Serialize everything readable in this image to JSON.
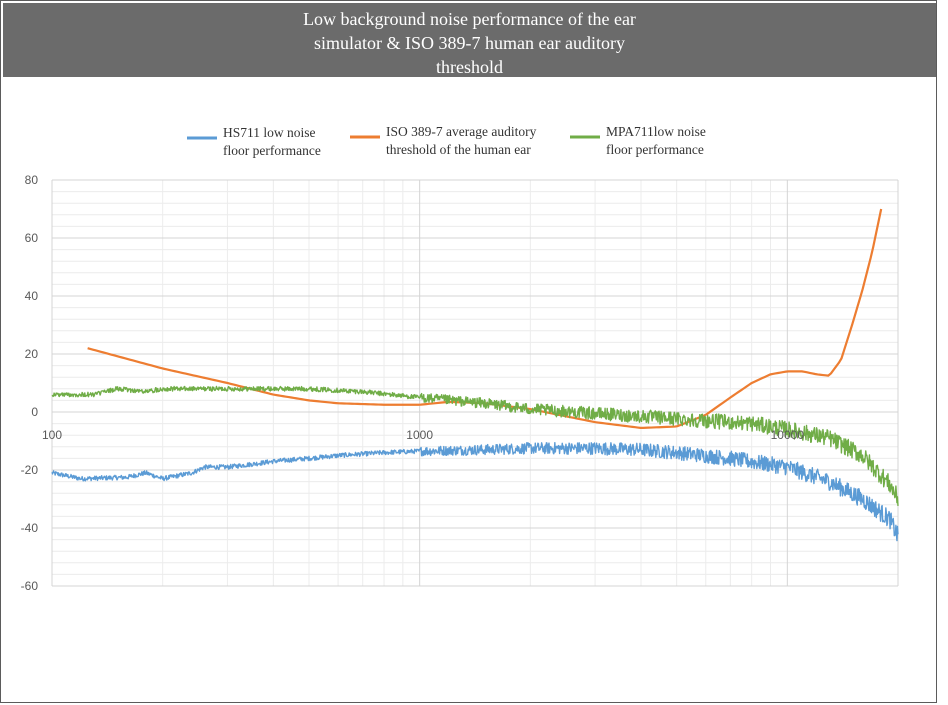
{
  "title_lines": [
    "Low background noise performance of the ear",
    "simulator & ISO 389-7 human ear auditory",
    "threshold"
  ],
  "chart_data": {
    "type": "line",
    "title": "Low background noise performance of the ear simulator & ISO 389-7 human ear auditory threshold",
    "xscale": "log",
    "xlim": [
      100,
      20000
    ],
    "ylim": [
      -60,
      80
    ],
    "x_ticks": [
      100,
      1000,
      10000
    ],
    "x_tick_labels": [
      "100",
      "1000",
      "10000"
    ],
    "y_ticks": [
      80,
      60,
      40,
      20,
      0,
      -20,
      -40,
      -60
    ],
    "y_tick_labels": [
      "80",
      "60",
      "40",
      "20",
      "0",
      "-20",
      "-40",
      "-60"
    ],
    "grid": true,
    "minor_grid": true,
    "legend_position": "top",
    "series": [
      {
        "name": "HS711 low noise floor performance",
        "legend_lines": [
          "HS711 low noise",
          "floor performance"
        ],
        "color": "#5b9bd5",
        "noisy": true,
        "x": [
          100,
          120,
          160,
          180,
          200,
          240,
          260,
          300,
          350,
          400,
          500,
          600,
          800,
          1000,
          1500,
          2000,
          3000,
          4000,
          5000,
          7000,
          10000,
          13000,
          16000,
          19000,
          20000
        ],
        "y": [
          -21,
          -23,
          -22.5,
          -21,
          -23,
          -21,
          -19,
          -19,
          -18,
          -17,
          -16,
          -15,
          -14,
          -13.5,
          -13,
          -12.5,
          -12.5,
          -13,
          -14,
          -16,
          -19,
          -24,
          -30,
          -37,
          -43
        ]
      },
      {
        "name": "ISO 389-7 average auditory threshold of the human ear",
        "legend_lines": [
          "ISO 389-7 average auditory",
          "threshold of the human ear"
        ],
        "color": "#ed7d31",
        "noisy": false,
        "x": [
          125,
          200,
          300,
          400,
          500,
          600,
          800,
          1000,
          1200,
          1500,
          2000,
          3000,
          4000,
          5000,
          6000,
          7000,
          8000,
          9000,
          10000,
          11000,
          12000,
          13000,
          14000,
          15000,
          16000,
          17000,
          18000
        ],
        "y": [
          22,
          15,
          10,
          6,
          4,
          3,
          2.5,
          2.5,
          3.5,
          3,
          1,
          -3.5,
          -5.5,
          -5,
          -1,
          5,
          10,
          13,
          14,
          14,
          13,
          12.5,
          18,
          30,
          42,
          55,
          70
        ]
      },
      {
        "name": "MPA711low noise floor performance",
        "legend_lines": [
          "MPA711low noise",
          "floor performance"
        ],
        "color": "#70ad47",
        "noisy": true,
        "x": [
          100,
          120,
          130,
          150,
          180,
          200,
          250,
          300,
          400,
          500,
          700,
          1000,
          1500,
          2000,
          3000,
          4000,
          6000,
          8000,
          10000,
          13000,
          16000,
          19000,
          20000
        ],
        "y": [
          6,
          6,
          6,
          8,
          7,
          8,
          8,
          8,
          8,
          8,
          7,
          5,
          3,
          1,
          -0.5,
          -1.5,
          -3,
          -4,
          -6,
          -9,
          -15,
          -25,
          -30
        ]
      }
    ]
  }
}
